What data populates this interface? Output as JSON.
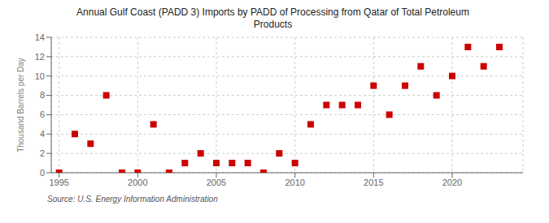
{
  "chart_data": {
    "type": "scatter",
    "title": "Annual Gulf Coast (PADD 3) Imports by PADD of Processing from Qatar of Total Petroleum\nProducts",
    "ylabel": "Thousand Barrels per Day",
    "source": "Source: U.S. Energy Information Administration",
    "x": [
      1995,
      1996,
      1997,
      1998,
      1999,
      2000,
      2001,
      2002,
      2003,
      2004,
      2005,
      2006,
      2007,
      2008,
      2009,
      2010,
      2011,
      2012,
      2013,
      2014,
      2015,
      2016,
      2017,
      2018,
      2019,
      2020,
      2021,
      2022,
      2023
    ],
    "values": [
      0,
      4,
      3,
      8,
      0,
      0,
      5,
      0,
      1,
      2,
      1,
      1,
      1,
      0,
      2,
      1,
      5,
      7,
      7,
      7,
      9,
      6,
      9,
      11,
      8,
      10,
      13,
      11,
      13
    ],
    "color": "#cc0000",
    "marker": "square",
    "xlim": [
      1994.5,
      2024.5
    ],
    "ylim": [
      0,
      14
    ],
    "xticks": [
      1995,
      2000,
      2005,
      2010,
      2015,
      2020
    ],
    "yticks": [
      0,
      2,
      4,
      6,
      8,
      10,
      12,
      14
    ],
    "grid": true
  }
}
